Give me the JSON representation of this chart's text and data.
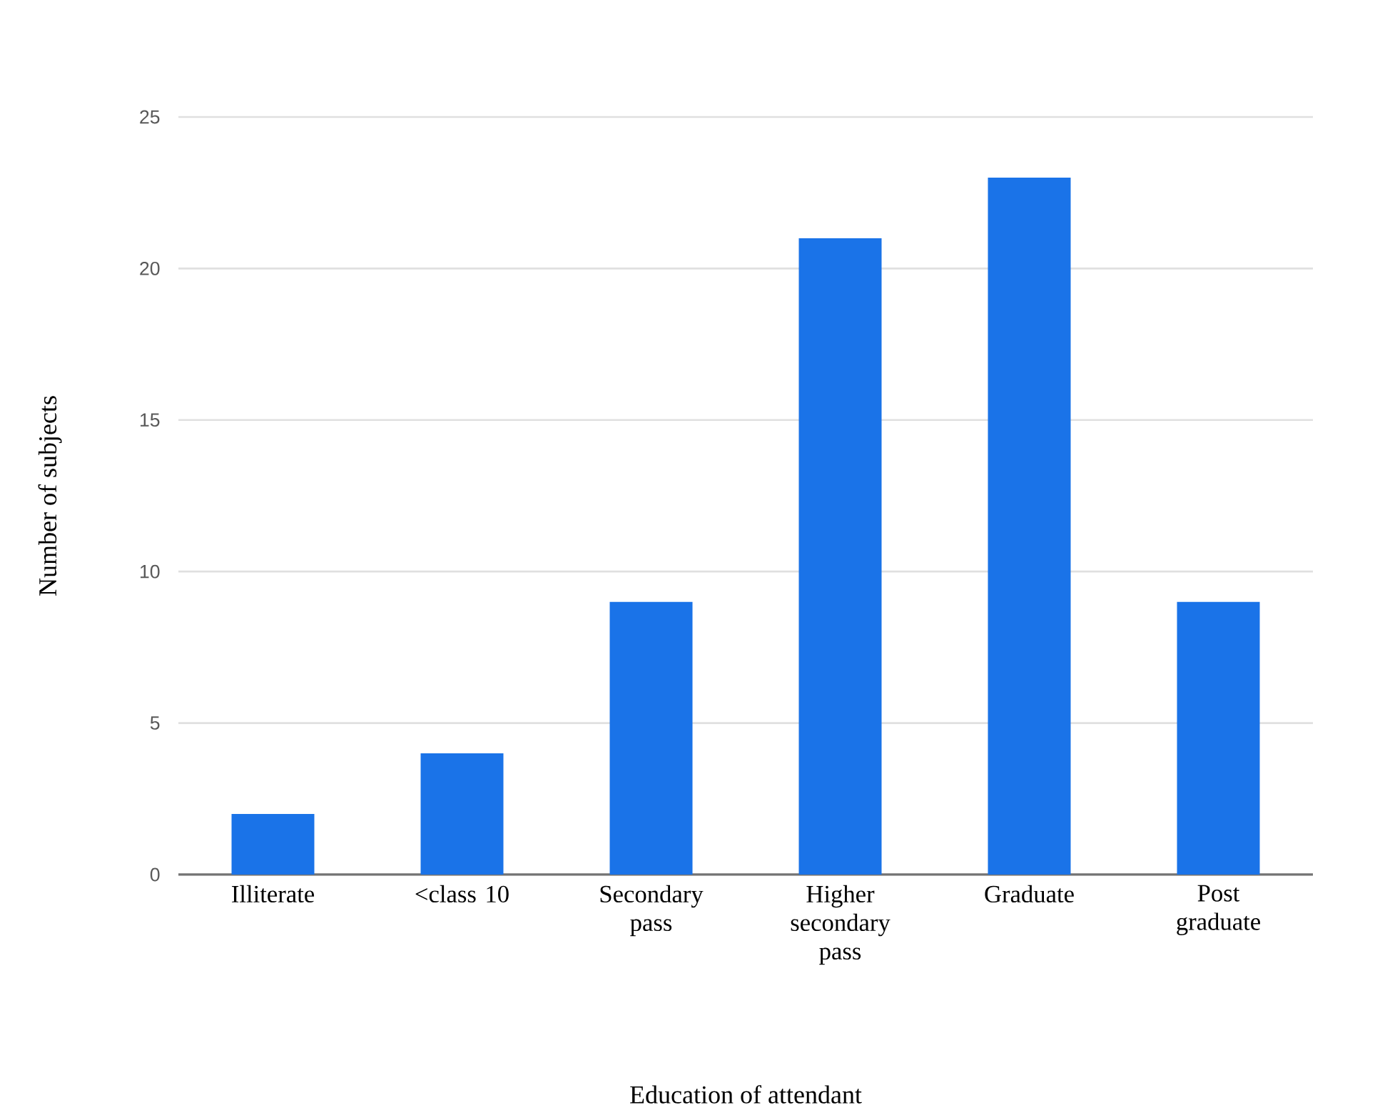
{
  "chart_data": {
    "type": "bar",
    "xlabel": "Education of attendant",
    "ylabel": "Number of subjects",
    "categories": [
      "Illiterate",
      "<class 10",
      "Secondary pass",
      "Higher secondary pass",
      "Graduate",
      "Post graduate"
    ],
    "values": [
      2,
      4,
      9,
      21,
      23,
      9
    ],
    "color": "#1a73e8",
    "ylim": [
      0,
      25
    ],
    "yticks": [
      0,
      5,
      10,
      15,
      20,
      25
    ],
    "grid": "y"
  }
}
